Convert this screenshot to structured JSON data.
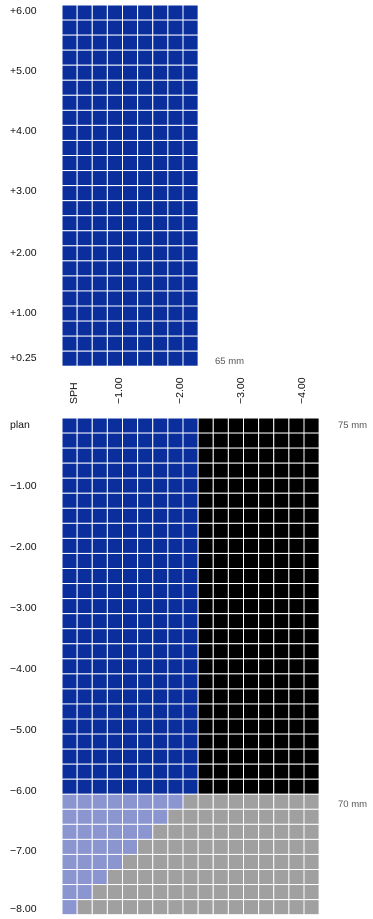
{
  "chart_data": {
    "type": "heatmap",
    "row_axis_label": "SPH",
    "cyl_tick_labels": [
      "−1.00",
      "−2.00",
      "−3.00",
      "−4.00"
    ],
    "plus_sph_tick_labels": [
      "+6.00",
      "+5.00",
      "+4.00",
      "+3.00",
      "+2.00",
      "+1.00",
      "+0.25"
    ],
    "minus_sph_tick_labels": [
      "plan",
      "−1.00",
      "−2.00",
      "−3.00",
      "−4.00",
      "−5.00",
      "−6.00",
      "−7.00",
      "−8.00"
    ],
    "diameter_notes": [
      {
        "label": "65 mm",
        "note_for": "plus range"
      },
      {
        "label": "75 mm",
        "note_for": "plan to −6.00"
      },
      {
        "label": "70 mm",
        "note_for": "−6.25 to −8.00"
      }
    ],
    "step": 0.25,
    "cyl_range": [
      0,
      -4.0
    ],
    "plus_block": {
      "sph_range": [
        0.25,
        6.0
      ],
      "cyl_range": [
        0,
        -2.0
      ],
      "category": "blue"
    },
    "minus_block": {
      "sph_range": [
        0,
        -8.0
      ],
      "regions": [
        {
          "category": "blue",
          "sph_range": [
            0,
            -6.0
          ],
          "cyl_range": [
            0,
            -2.0
          ]
        },
        {
          "category": "black",
          "sph_range": [
            0,
            -6.0
          ],
          "cyl_range": [
            -2.25,
            -4.0
          ]
        },
        {
          "category": "lightblue",
          "sph_range": [
            -6.25,
            -8.0
          ],
          "cyl_max_columns_by_row": [
            8,
            7,
            6,
            5,
            4,
            3,
            2,
            1
          ]
        },
        {
          "category": "gray",
          "sph_range": [
            -6.25,
            -8.0
          ],
          "cyl_range": [
            0,
            -4.0
          ],
          "note": "remaining cells"
        }
      ]
    },
    "colors": {
      "blue": "#0a2e9c",
      "black": "#000000",
      "lightblue": "#8b95d0",
      "gray": "#a0a0a0",
      "gridline": "#ffffff"
    }
  }
}
